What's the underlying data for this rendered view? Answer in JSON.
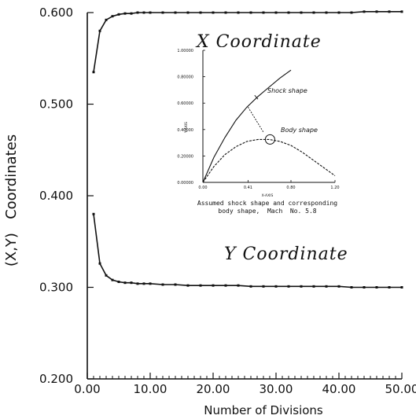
{
  "chart_data": [
    {
      "type": "line",
      "xlabel": "Number of Divisions",
      "ylabel": "(X,Y)   Coordinates",
      "xlim": [
        0,
        50
      ],
      "ylim": [
        0.2,
        0.6
      ],
      "xticks": [
        0,
        10,
        20,
        30,
        40,
        50
      ],
      "xtick_labels": [
        "0.00",
        "10.00",
        "20.00",
        "30.00",
        "40.00",
        "50.00"
      ],
      "yticks": [
        0.2,
        0.3,
        0.4,
        0.5,
        0.6
      ],
      "ytick_labels": [
        "0.200",
        "0.300",
        "0.400",
        "0.500",
        "0.600"
      ],
      "grid": false,
      "series": [
        {
          "name": "X Coordinate",
          "x": [
            1,
            2,
            3,
            4,
            5,
            6,
            7,
            8,
            9,
            10,
            12,
            14,
            16,
            18,
            20,
            22,
            24,
            26,
            28,
            30,
            32,
            34,
            36,
            38,
            40,
            42,
            44,
            46,
            48,
            50
          ],
          "y": [
            0.535,
            0.58,
            0.592,
            0.596,
            0.598,
            0.599,
            0.599,
            0.6,
            0.6,
            0.6,
            0.6,
            0.6,
            0.6,
            0.6,
            0.6,
            0.6,
            0.6,
            0.6,
            0.6,
            0.6,
            0.6,
            0.6,
            0.6,
            0.6,
            0.6,
            0.6,
            0.601,
            0.601,
            0.601,
            0.601
          ]
        },
        {
          "name": "Y Coordinate",
          "x": [
            1,
            2,
            3,
            4,
            5,
            6,
            7,
            8,
            9,
            10,
            12,
            14,
            16,
            18,
            20,
            22,
            24,
            26,
            28,
            30,
            32,
            34,
            36,
            38,
            40,
            42,
            44,
            46,
            48,
            50
          ],
          "y": [
            0.38,
            0.326,
            0.313,
            0.308,
            0.306,
            0.305,
            0.305,
            0.304,
            0.304,
            0.304,
            0.303,
            0.303,
            0.302,
            0.302,
            0.302,
            0.302,
            0.302,
            0.301,
            0.301,
            0.301,
            0.301,
            0.301,
            0.301,
            0.301,
            0.301,
            0.3,
            0.3,
            0.3,
            0.3,
            0.3
          ]
        }
      ]
    },
    {
      "type": "line",
      "xlabel": "X-AXIS",
      "ylabel": "Y-AXIS",
      "xlim": [
        0,
        1.2
      ],
      "ylim": [
        0,
        1.0
      ],
      "xtick_labels": [
        "0.00",
        "0.41",
        "0.80",
        "1.20"
      ],
      "ytick_labels": [
        "0.00000",
        "0.20000",
        "0.40000",
        "0.60000",
        "0.80000",
        "1.00000"
      ],
      "annotations": [
        "Shock shape",
        "Body shape"
      ],
      "caption_line1": "Assumed shock shape and corresponding",
      "caption_line2": "body shape,  Mach  No. 5.8",
      "series": [
        {
          "name": "Shock shape",
          "x": [
            0.0,
            0.1,
            0.2,
            0.3,
            0.4,
            0.5,
            0.6,
            0.7,
            0.8
          ],
          "y": [
            0.0,
            0.19,
            0.34,
            0.47,
            0.57,
            0.65,
            0.72,
            0.79,
            0.85
          ]
        },
        {
          "name": "Body shape",
          "x": [
            0.0,
            0.1,
            0.2,
            0.3,
            0.4,
            0.5,
            0.6,
            0.7,
            0.8,
            0.9,
            1.0,
            1.1,
            1.2
          ],
          "y": [
            0.0,
            0.12,
            0.21,
            0.27,
            0.31,
            0.325,
            0.325,
            0.31,
            0.28,
            0.23,
            0.17,
            0.11,
            0.05
          ]
        }
      ]
    }
  ]
}
